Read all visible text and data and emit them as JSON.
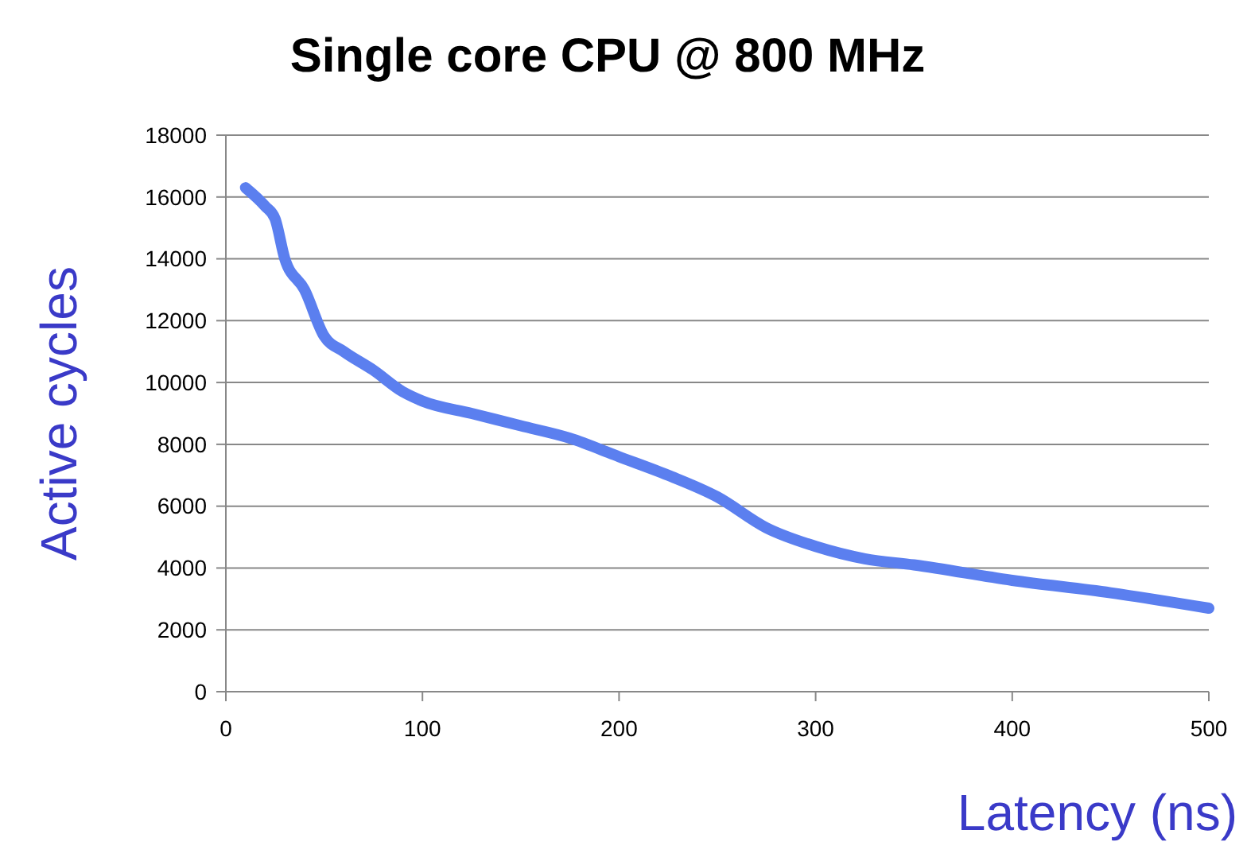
{
  "chart_data": {
    "type": "line",
    "title": "Single core CPU @ 800 MHz",
    "xlabel": "Latency (ns)",
    "ylabel": "Active cycles",
    "x": [
      10,
      20,
      25,
      30,
      40,
      50,
      60,
      75,
      90,
      100,
      125,
      150,
      175,
      200,
      225,
      250,
      275,
      300,
      325,
      350,
      400,
      450,
      500
    ],
    "series": [
      {
        "color": "#5b7fef",
        "values": [
          16300,
          15700,
          15300,
          14000,
          13000,
          11500,
          11000,
          10400,
          9700,
          9400,
          9000,
          8600,
          8200,
          7600,
          7000,
          6300,
          5300,
          4700,
          4300,
          4100,
          3600,
          3200,
          2700
        ]
      }
    ],
    "xlim": [
      0,
      500
    ],
    "xticks": [
      0,
      100,
      200,
      300,
      400,
      500
    ],
    "ylim": [
      0,
      18000
    ],
    "yticks": [
      0,
      2000,
      4000,
      6000,
      8000,
      10000,
      12000,
      14000,
      16000,
      18000
    ],
    "grid": "y",
    "marker": "none",
    "line_style": "solid"
  }
}
